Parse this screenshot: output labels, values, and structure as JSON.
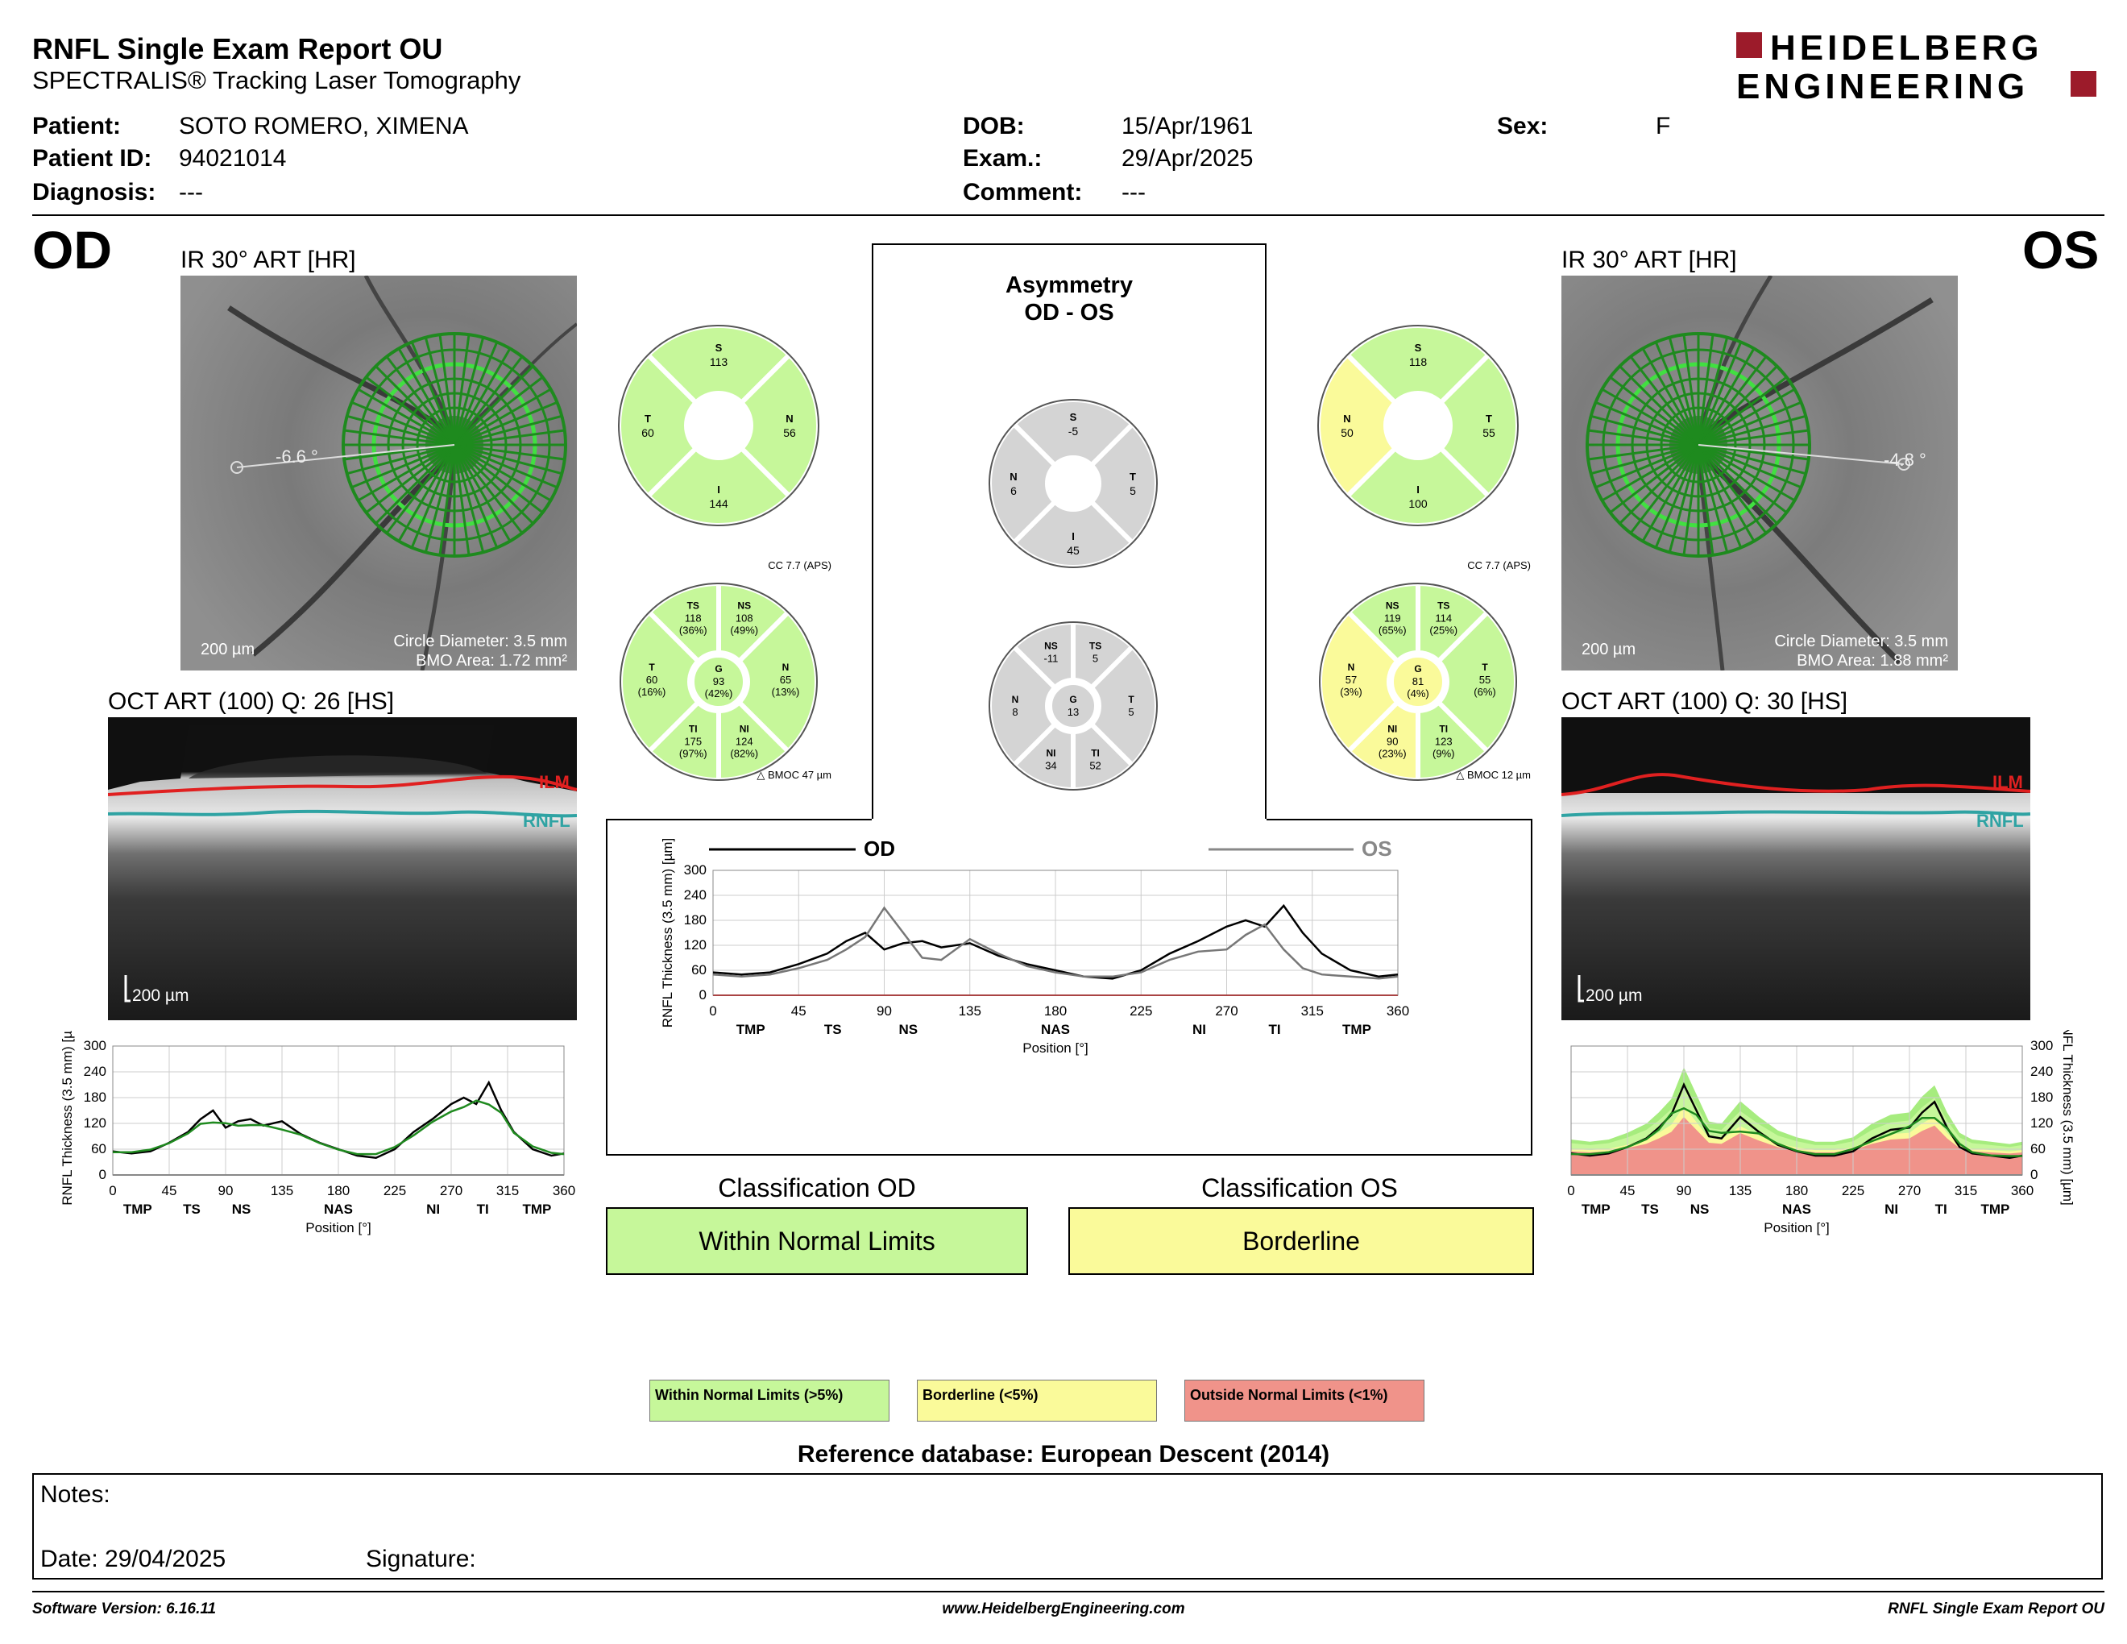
{
  "header": {
    "title": "RNFL Single Exam Report OU",
    "subtitle": "SPECTRALIS® Tracking Laser Tomography",
    "logo_line1": "HEIDELBERG",
    "logo_line2": "ENGINEERING"
  },
  "patient": {
    "patient_label": "Patient:",
    "patient_value": "SOTO ROMERO, XIMENA",
    "id_label": "Patient ID:",
    "id_value": "94021014",
    "diag_label": "Diagnosis:",
    "diag_value": "---",
    "dob_label": "DOB:",
    "dob_value": "15/Apr/1961",
    "exam_label": "Exam.:",
    "exam_value": "29/Apr/2025",
    "comment_label": "Comment:",
    "comment_value": "---",
    "sex_label": "Sex:",
    "sex_value": "F"
  },
  "od": {
    "eye": "OD",
    "ir_title": "IR 30° ART [HR]",
    "angle": "-6.6 °",
    "scale": "200 µm",
    "circle": "Circle Diameter: 3.5 mm",
    "bmo": "BMO Area: 1.72 mm²",
    "oct_title": "OCT ART (100) Q: 26 [HS]",
    "oct_scale": "200 µm",
    "ilm": "ILM",
    "rnfl": "RNFL",
    "cc": "CC 7.7 (APS)",
    "bmoc": "47 µm",
    "sector4": {
      "S": "113",
      "T": "60",
      "N": "56",
      "I": "144"
    },
    "sector6": {
      "TS": "118",
      "TSp": "(36%)",
      "NS": "108",
      "NSp": "(49%)",
      "T": "60",
      "Tp": "(16%)",
      "G": "93",
      "Gp": "(42%)",
      "N": "65",
      "Np": "(13%)",
      "TI": "175",
      "TIp": "(97%)",
      "NI": "124",
      "NIp": "(82%)"
    }
  },
  "os": {
    "eye": "OS",
    "ir_title": "IR 30° ART [HR]",
    "angle": "-4.8 °",
    "scale": "200 µm",
    "circle": "Circle Diameter: 3.5 mm",
    "bmo": "BMO Area: 1.88 mm²",
    "oct_title": "OCT ART (100) Q: 30 [HS]",
    "oct_scale": "200 µm",
    "ilm": "ILM",
    "rnfl": "RNFL",
    "cc": "CC 7.7 (APS)",
    "bmoc": "12 µm",
    "sector4": {
      "S": "118",
      "N": "50",
      "T": "55",
      "I": "100"
    },
    "sector6": {
      "NS": "119",
      "NSp": "(65%)",
      "TS": "114",
      "TSp": "(25%)",
      "N": "57",
      "Np": "(3%)",
      "G": "81",
      "Gp": "(4%)",
      "T": "55",
      "Tp": "(6%)",
      "NI": "90",
      "NIp": "(23%)",
      "TI": "123",
      "TIp": "(9%)"
    }
  },
  "asym": {
    "title1": "Asymmetry",
    "title2": "OD - OS",
    "sector4": {
      "S": "-5",
      "N": "6",
      "T": "5",
      "I": "45"
    },
    "sector6": {
      "NS": "-11",
      "TS": "5",
      "N": "8",
      "G": "13",
      "T": "5",
      "NI": "34",
      "TI": "52"
    }
  },
  "chart_labels": {
    "ylabel": "RNFL Thickness (3.5 mm) [µm]",
    "xlabel": "Position [°]",
    "od_legend": "OD",
    "os_legend": "OS",
    "yticks": [
      "0",
      "60",
      "120",
      "180",
      "240",
      "300"
    ],
    "xticks": [
      "0",
      "45",
      "90",
      "135",
      "180",
      "225",
      "270",
      "315",
      "360"
    ],
    "sectors": [
      "TMP",
      "TS",
      "NS",
      "NAS",
      "NI",
      "TI",
      "TMP"
    ]
  },
  "chart_data": [
    {
      "type": "line",
      "title": "",
      "xlabel": "Position [°]",
      "ylabel": "RNFL Thickness (3.5 mm) [µm]",
      "xlim": [
        0,
        360
      ],
      "ylim": [
        0,
        300
      ],
      "x": [
        0,
        15,
        30,
        45,
        60,
        70,
        80,
        90,
        100,
        110,
        120,
        135,
        150,
        165,
        180,
        195,
        210,
        225,
        240,
        255,
        270,
        280,
        290,
        300,
        310,
        320,
        335,
        350,
        360
      ],
      "series": [
        {
          "name": "OD",
          "color": "#000000",
          "values": [
            55,
            50,
            55,
            75,
            100,
            130,
            150,
            110,
            125,
            130,
            115,
            125,
            95,
            75,
            60,
            45,
            40,
            60,
            100,
            130,
            165,
            180,
            165,
            215,
            150,
            100,
            60,
            45,
            50
          ]
        },
        {
          "name": "OS",
          "color": "#777777",
          "values": [
            50,
            45,
            50,
            65,
            85,
            110,
            140,
            210,
            150,
            90,
            85,
            135,
            100,
            70,
            55,
            45,
            45,
            55,
            85,
            105,
            110,
            145,
            170,
            110,
            65,
            50,
            45,
            40,
            45
          ]
        }
      ]
    }
  ],
  "classification": {
    "od_title": "Classification OD",
    "od_result": "Within Normal Limits",
    "os_title": "Classification OS",
    "os_result": "Borderline"
  },
  "legend": {
    "wnl": "Within Normal Limits (>5%)",
    "bl": "Borderline (<5%)",
    "onl": "Outside Normal Limits (<1%)"
  },
  "refdb": "Reference database: European Descent (2014)",
  "notes": {
    "notes": "Notes:",
    "date": "Date: 29/04/2025",
    "signature": "Signature:"
  },
  "footer": {
    "version": "Software Version: 6.16.11",
    "site": "www.HeidelbergEngineering.com",
    "report": "RNFL Single Exam Report OU"
  },
  "colors": {
    "green": "#c6f79a",
    "yellow": "#fafa9a",
    "red": "#f0938a",
    "grey": "#d4d4d4",
    "brand": "#9c1b2a"
  }
}
